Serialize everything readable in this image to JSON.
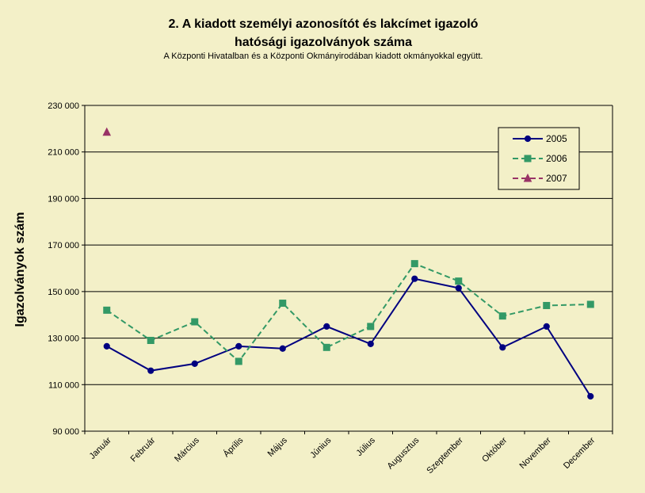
{
  "chart_data": {
    "type": "line",
    "title_line1": "2. A kiadott személyi azonosítót és lakcímet igazoló",
    "title_line2": "hatósági igazolványok száma",
    "subtitle": "A Központi Hivatalban és a Központi Okmányirodában kiadott okmányokkal együtt.",
    "ylabel": "Igazolványok szám",
    "xlabel": "",
    "ylim": [
      90000,
      230000
    ],
    "ytick_values": [
      90000,
      110000,
      130000,
      150000,
      170000,
      190000,
      210000,
      230000
    ],
    "ytick_labels": [
      "90 000",
      "110 000",
      "130 000",
      "150 000",
      "170 000",
      "190 000",
      "210 000",
      "230 000"
    ],
    "categories": [
      "Január",
      "Február",
      "Március",
      "Április",
      "Május",
      "Június",
      "Július",
      "Augusztus",
      "Szeptember",
      "Október",
      "November",
      "December"
    ],
    "grid": true,
    "legend_position": "top-right",
    "series": [
      {
        "name": "2005",
        "color": "#000080",
        "marker": "circle",
        "dash": "solid",
        "values": [
          126500,
          116000,
          119000,
          126500,
          125500,
          135000,
          127500,
          155500,
          151500,
          126000,
          135000,
          105000
        ]
      },
      {
        "name": "2006",
        "color": "#339966",
        "marker": "square",
        "dash": "dashed",
        "values": [
          142000,
          129000,
          137000,
          120000,
          145000,
          126000,
          135000,
          162000,
          154500,
          139500,
          144000,
          144500
        ]
      },
      {
        "name": "2007",
        "color": "#993366",
        "marker": "triangle",
        "dash": "dashed",
        "values": [
          218500,
          null,
          null,
          null,
          null,
          null,
          null,
          null,
          null,
          null,
          null,
          null
        ]
      }
    ]
  }
}
